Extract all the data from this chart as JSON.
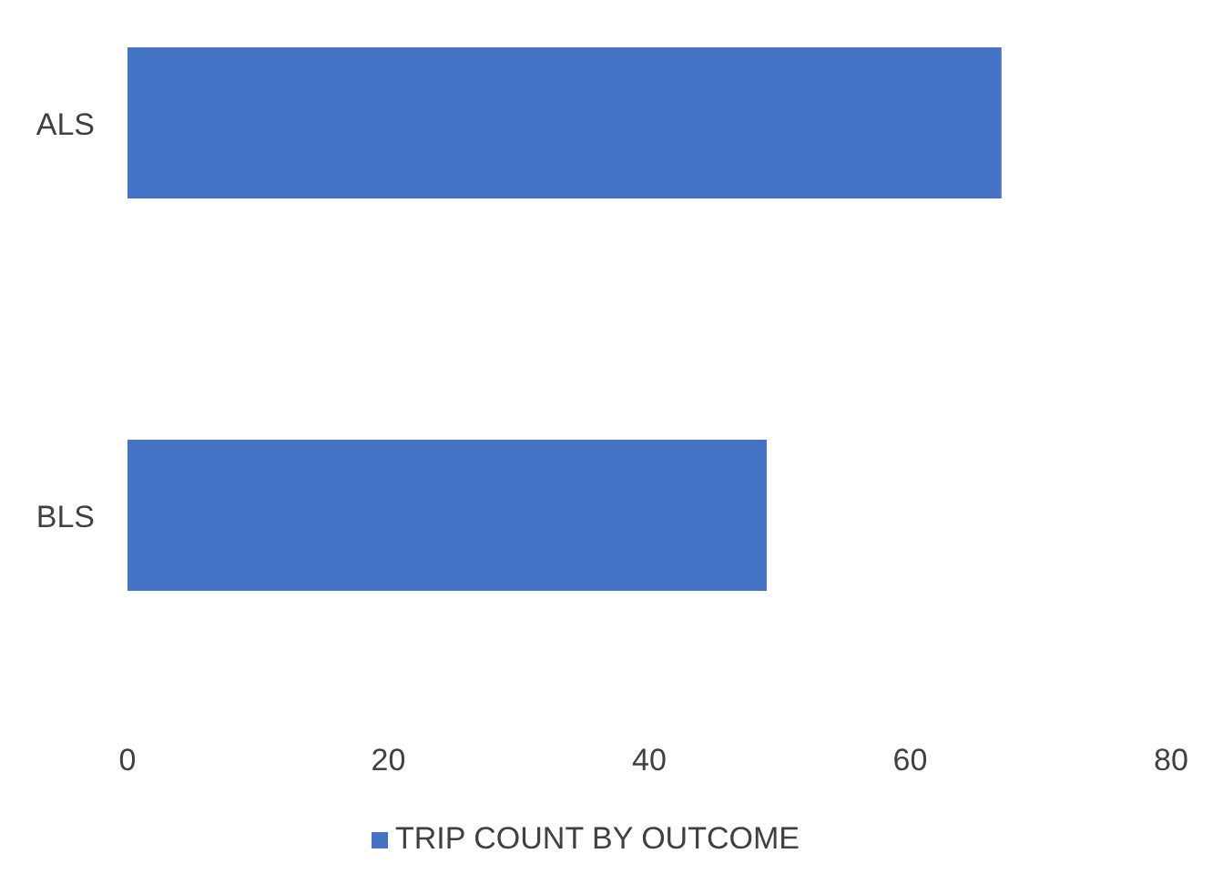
{
  "chart_data": {
    "type": "bar",
    "orientation": "horizontal",
    "categories": [
      "ALS",
      "BLS"
    ],
    "series": [
      {
        "name": "TRIP COUNT BY OUTCOME",
        "color": "#4472c4",
        "values": [
          67,
          49
        ]
      }
    ],
    "xlim": [
      0,
      80
    ],
    "xticks": [
      0,
      20,
      40,
      60,
      80
    ],
    "legend": "bottom"
  }
}
